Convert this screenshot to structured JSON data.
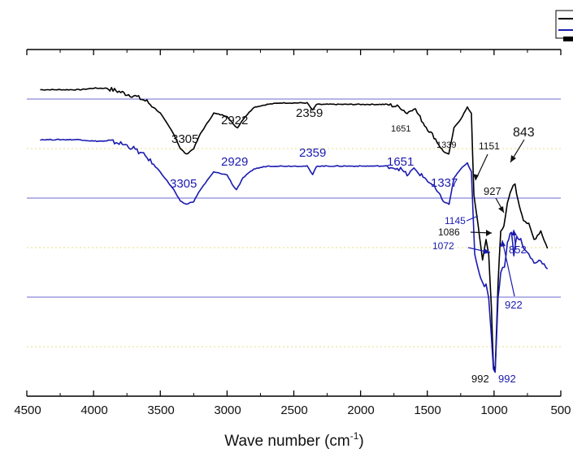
{
  "chart_data": {
    "type": "line",
    "xlabel": "Wave number (cm",
    "xlabel_sup": "-1",
    "xlabel_suffix": ")",
    "ylabel": "",
    "xlim": [
      4500,
      500
    ],
    "x_reversed": true,
    "x_ticks": [
      4500,
      4000,
      3500,
      3000,
      2500,
      2000,
      1500,
      1000,
      500
    ],
    "grid": "horizontal",
    "legend": "top-right (clipped, labels not readable)",
    "series": [
      {
        "color": "#000000",
        "points": [
          [
            4400,
            96
          ],
          [
            4300,
            96
          ],
          [
            4200,
            96
          ],
          [
            4100,
            96
          ],
          [
            4000,
            96.5
          ],
          [
            3900,
            96.5
          ],
          [
            3820,
            95.5
          ],
          [
            3750,
            94.5
          ],
          [
            3700,
            94
          ],
          [
            3600,
            92
          ],
          [
            3500,
            88
          ],
          [
            3400,
            81
          ],
          [
            3350,
            76
          ],
          [
            3305,
            74
          ],
          [
            3250,
            76
          ],
          [
            3200,
            81
          ],
          [
            3100,
            88
          ],
          [
            3000,
            87
          ],
          [
            2950,
            84
          ],
          [
            2922,
            83
          ],
          [
            2880,
            86
          ],
          [
            2800,
            90
          ],
          [
            2700,
            91
          ],
          [
            2600,
            91.5
          ],
          [
            2500,
            91.5
          ],
          [
            2400,
            91.5
          ],
          [
            2359,
            89
          ],
          [
            2330,
            91
          ],
          [
            2250,
            91
          ],
          [
            2100,
            91
          ],
          [
            1950,
            91
          ],
          [
            1800,
            91
          ],
          [
            1700,
            90
          ],
          [
            1651,
            88
          ],
          [
            1600,
            90
          ],
          [
            1520,
            84
          ],
          [
            1450,
            80
          ],
          [
            1380,
            75
          ],
          [
            1339,
            74
          ],
          [
            1300,
            83
          ],
          [
            1250,
            86
          ],
          [
            1200,
            90
          ],
          [
            1170,
            88
          ],
          [
            1151,
            60
          ],
          [
            1120,
            50
          ],
          [
            1100,
            43
          ],
          [
            1086,
            38
          ],
          [
            1060,
            45
          ],
          [
            1040,
            40
          ],
          [
            1020,
            22
          ],
          [
            1005,
            2
          ],
          [
            992,
            0
          ],
          [
            970,
            30
          ],
          [
            950,
            48
          ],
          [
            927,
            50
          ],
          [
            900,
            57
          ],
          [
            870,
            62
          ],
          [
            843,
            64
          ],
          [
            820,
            58
          ],
          [
            800,
            55
          ],
          [
            780,
            52
          ],
          [
            740,
            50
          ],
          [
            700,
            45
          ],
          [
            650,
            48
          ],
          [
            600,
            42
          ]
        ],
        "labels": [
          "3305",
          "2922",
          "2359",
          "1651",
          "1339",
          "1151",
          "1086",
          "927",
          "843",
          "992"
        ]
      },
      {
        "color": "#1a1ab0",
        "points": [
          [
            4400,
            79
          ],
          [
            4300,
            79
          ],
          [
            4200,
            79
          ],
          [
            4100,
            79
          ],
          [
            4000,
            78.5
          ],
          [
            3900,
            78.5
          ],
          [
            3820,
            78
          ],
          [
            3750,
            77
          ],
          [
            3700,
            76
          ],
          [
            3600,
            73
          ],
          [
            3500,
            68
          ],
          [
            3400,
            62
          ],
          [
            3350,
            58
          ],
          [
            3305,
            57
          ],
          [
            3250,
            58
          ],
          [
            3200,
            62
          ],
          [
            3100,
            68
          ],
          [
            3000,
            67
          ],
          [
            2950,
            63
          ],
          [
            2929,
            62
          ],
          [
            2880,
            66
          ],
          [
            2800,
            69
          ],
          [
            2700,
            70
          ],
          [
            2600,
            70
          ],
          [
            2500,
            70
          ],
          [
            2400,
            70
          ],
          [
            2359,
            67
          ],
          [
            2330,
            70
          ],
          [
            2250,
            70
          ],
          [
            2100,
            70
          ],
          [
            1950,
            70
          ],
          [
            1800,
            70
          ],
          [
            1700,
            69
          ],
          [
            1651,
            67
          ],
          [
            1600,
            69
          ],
          [
            1520,
            66
          ],
          [
            1450,
            63
          ],
          [
            1380,
            58
          ],
          [
            1337,
            57
          ],
          [
            1300,
            66
          ],
          [
            1250,
            69
          ],
          [
            1200,
            71
          ],
          [
            1170,
            68
          ],
          [
            1145,
            40
          ],
          [
            1120,
            35
          ],
          [
            1100,
            32
          ],
          [
            1072,
            29
          ],
          [
            1060,
            30
          ],
          [
            1040,
            25
          ],
          [
            1020,
            12
          ],
          [
            1005,
            1
          ],
          [
            992,
            0
          ],
          [
            970,
            25
          ],
          [
            950,
            34
          ],
          [
            922,
            36
          ],
          [
            900,
            44
          ],
          [
            870,
            48
          ],
          [
            852,
            40
          ],
          [
            830,
            46
          ],
          [
            800,
            45
          ],
          [
            780,
            42
          ],
          [
            740,
            40
          ],
          [
            700,
            37
          ],
          [
            650,
            38
          ],
          [
            600,
            35
          ]
        ],
        "labels": [
          "3305",
          "2929",
          "2359",
          "1651",
          "1337",
          "1145",
          "1072",
          "922",
          "852",
          "992"
        ]
      }
    ]
  },
  "labels_black": {
    "l3305": "3305",
    "l2922": "2922",
    "l2359": "2359",
    "l1651": "1651",
    "l1339": "1339",
    "l1151": "1151",
    "l1086": "1086",
    "l927": "927",
    "l843": "843",
    "l992": "992"
  },
  "labels_blue": {
    "l3305": "3305",
    "l2929": "2929",
    "l2359": "2359",
    "l1651": "1651",
    "l1337": "1337",
    "l1145": "1145",
    "l1072": "1072",
    "l922": "922",
    "l852": "852",
    "l992": "992"
  },
  "ticks": {
    "t4500": "4500",
    "t4000": "4000",
    "t3500": "3500",
    "t3000": "3000",
    "t2500": "2500",
    "t2000": "2000",
    "t1500": "1500",
    "t1000": "1000",
    "t500": "500"
  }
}
